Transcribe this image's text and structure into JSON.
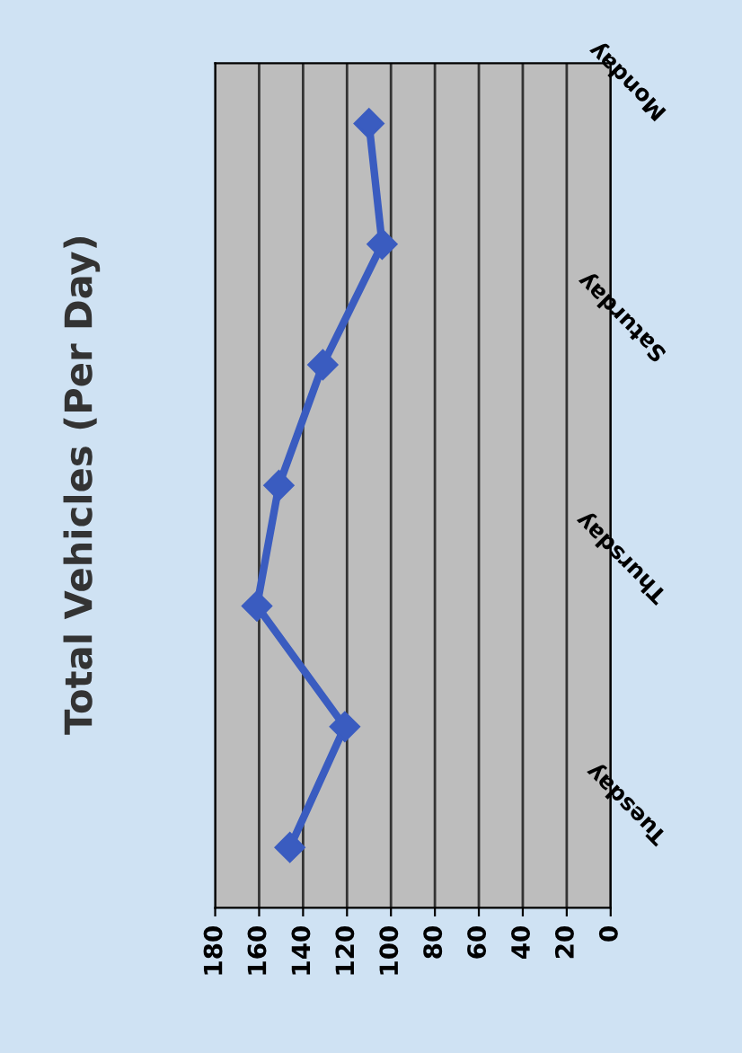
{
  "chart_data": {
    "type": "line",
    "title": "Total Vehicles (Per Day)",
    "orientation": "horizontal",
    "categories": [
      "Monday",
      null,
      "Saturday",
      null,
      "Thursday",
      null,
      "Tuesday"
    ],
    "series": [
      {
        "color": "#3a5cc0",
        "values": [
          110,
          104,
          131,
          151,
          161,
          121,
          146
        ]
      }
    ],
    "xlim": [
      180,
      0
    ],
    "xticks": [
      180,
      160,
      140,
      120,
      100,
      80,
      60,
      40,
      20,
      0
    ],
    "grid": "x",
    "marker": "diamond",
    "line_style": "solid"
  }
}
